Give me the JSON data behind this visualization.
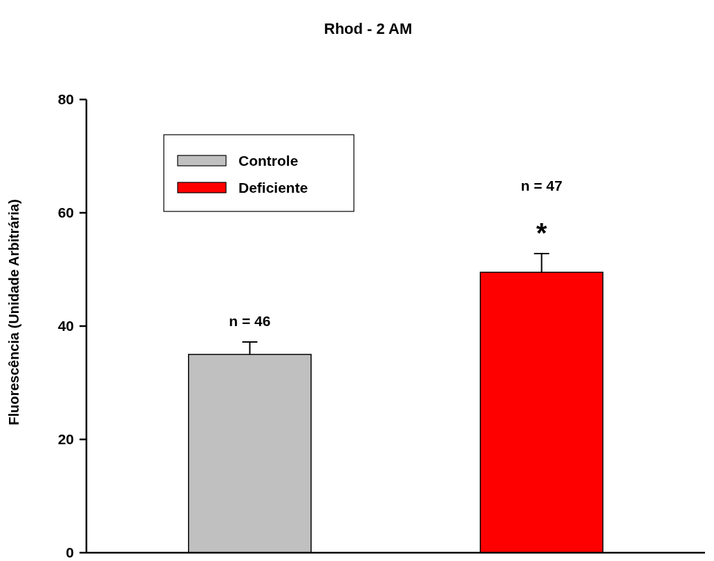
{
  "chart_data": {
    "type": "bar",
    "title": "Rhod - 2 AM",
    "ylabel": "Fluorescência (Unidade Arbitrária)",
    "categories": [
      null,
      null
    ],
    "series": [
      {
        "name": "Controle",
        "color": "#c0c0c0",
        "values": [
          35,
          null
        ],
        "errors": [
          2.2,
          null
        ]
      },
      {
        "name": "Deficiente",
        "color": "#ff0000",
        "values": [
          null,
          49.5
        ],
        "errors": [
          null,
          3.3
        ]
      }
    ],
    "ylim": [
      0,
      80
    ],
    "yticks": [
      0,
      20,
      40,
      60,
      80
    ],
    "legend": "top left",
    "annotations": [
      "n = 46",
      "n = 47",
      "*"
    ]
  }
}
